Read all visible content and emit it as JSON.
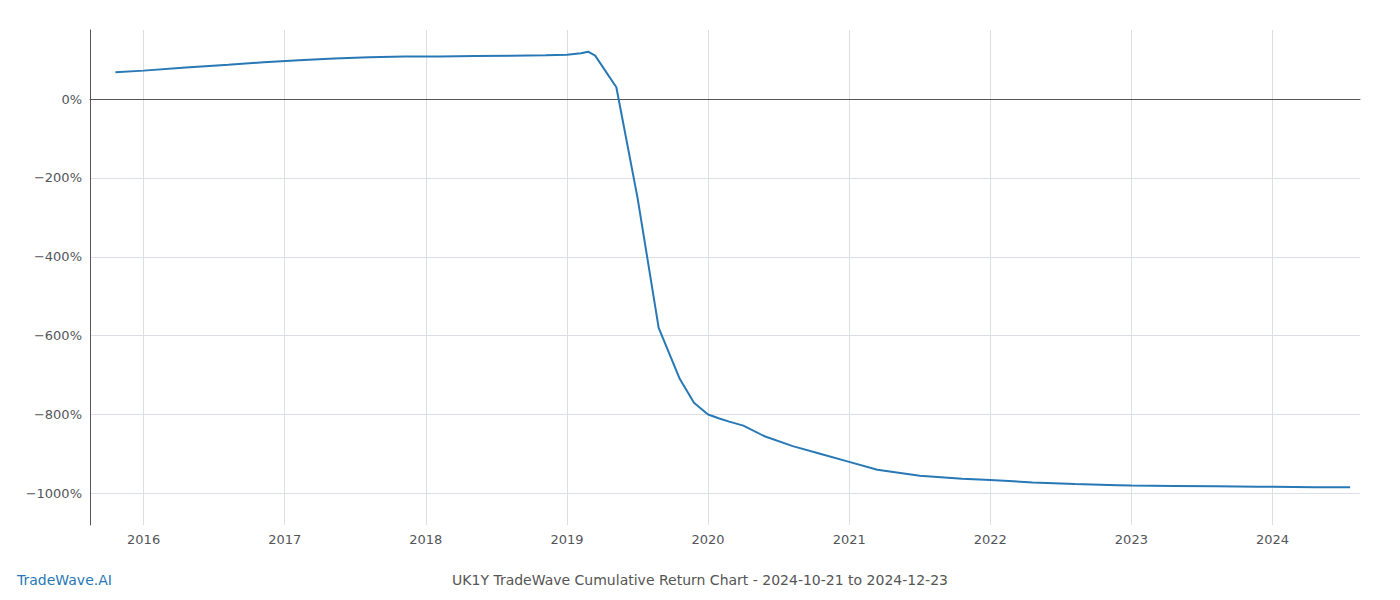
{
  "chart_data": {
    "type": "line",
    "title": "UK1Y TradeWave Cumulative Return Chart - 2024-10-21 to 2024-12-23",
    "annotations": [
      "TradeWave.AI"
    ],
    "x": [
      2015.8,
      2016.0,
      2016.3,
      2016.6,
      2016.85,
      2017.1,
      2017.35,
      2017.6,
      2017.85,
      2018.1,
      2018.35,
      2018.6,
      2018.85,
      2019.0,
      2019.1,
      2019.15,
      2019.2,
      2019.35,
      2019.5,
      2019.65,
      2019.8,
      2019.9,
      2020.0,
      2020.08,
      2020.15,
      2020.25,
      2020.4,
      2020.6,
      2020.8,
      2021.0,
      2021.2,
      2021.5,
      2021.8,
      2022.0,
      2022.3,
      2022.6,
      2022.9,
      2023.0,
      2023.3,
      2023.6,
      2023.9,
      2024.0,
      2024.3,
      2024.55
    ],
    "values": [
      68,
      72,
      80,
      87,
      93,
      98,
      103,
      106,
      108,
      108,
      109,
      110,
      111,
      112,
      116,
      120,
      110,
      30,
      -250,
      -580,
      -710,
      -770,
      -800,
      -810,
      -818,
      -828,
      -855,
      -880,
      -900,
      -920,
      -940,
      -955,
      -963,
      -966,
      -972,
      -976,
      -979,
      -980,
      -981,
      -982,
      -983,
      -983,
      -984,
      -984
    ],
    "color": "#2878b5",
    "xlim": [
      2015.62,
      2024.62
    ],
    "xticks": [
      2016,
      2017,
      2018,
      2019,
      2020,
      2021,
      2022,
      2023,
      2024
    ],
    "ylim": [
      -1080,
      175
    ],
    "yticks": [
      {
        "value": 0,
        "label": "0%"
      },
      {
        "value": -200,
        "label": "−200%"
      },
      {
        "value": -400,
        "label": "−400%"
      },
      {
        "value": -600,
        "label": "−600%"
      },
      {
        "value": -800,
        "label": "−800%"
      },
      {
        "value": -1000,
        "label": "−1000%"
      }
    ],
    "grid": true
  }
}
